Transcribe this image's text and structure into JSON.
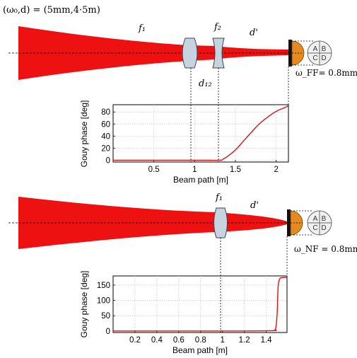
{
  "colors": {
    "beam": "#ee1111",
    "curve": "#dd1111",
    "lens": "#c7d3df",
    "lens_edge": "#3a4450",
    "detector": "#e48a1e"
  },
  "top_setup": {
    "params_label": "(ω₀,d) = (5mm,4·5m)",
    "label_f1": "f₁",
    "label_f2": "f₂",
    "label_dprime": "d'",
    "label_d12": "d₁₂",
    "spot_label": "ω_FF= 0.8mm",
    "quadrants": [
      "A",
      "B",
      "C",
      "D"
    ]
  },
  "bottom_setup": {
    "label_f1": "f₁",
    "label_dprime": "d'",
    "spot_label": "ω_NF = 0.8mm",
    "quadrants": [
      "A",
      "B",
      "C",
      "D"
    ]
  },
  "chart_data": [
    {
      "type": "line",
      "xlabel": "Beam path [m]",
      "ylabel": "Gouy phase [deg]",
      "xlim": [
        0,
        2.15
      ],
      "ylim": [
        -3,
        92
      ],
      "xticks": [
        0.5,
        1,
        1.5,
        2
      ],
      "xtick_labels": [
        "0.5",
        "1",
        "1.5",
        "2"
      ],
      "yticks": [
        0,
        20,
        40,
        60,
        80
      ],
      "ytick_labels": [
        "0",
        "20",
        "40",
        "60",
        "80"
      ],
      "grid": true,
      "series": [
        {
          "x": [
            0,
            1.0,
            1.3,
            1.35,
            1.4,
            1.5,
            1.6,
            1.7,
            1.8,
            1.9,
            2.0,
            2.1,
            2.15
          ],
          "y": [
            0,
            0,
            0,
            2,
            6,
            17,
            32,
            47,
            61,
            72,
            81,
            87,
            90
          ]
        }
      ]
    },
    {
      "type": "line",
      "xlabel": "Beam path [m]",
      "ylabel": "Gouy phase [deg]",
      "xlim": [
        0,
        1.59
      ],
      "ylim": [
        -5,
        180
      ],
      "xticks": [
        0.2,
        0.4,
        0.6,
        0.8,
        1,
        1.2,
        1.4
      ],
      "xtick_labels": [
        "0.2",
        "0.4",
        "0.6",
        "0.8",
        "1",
        "1.2",
        "1.4"
      ],
      "yticks": [
        0,
        50,
        100,
        150
      ],
      "ytick_labels": [
        "0",
        "50",
        "100",
        "150"
      ],
      "grid": true,
      "series": [
        {
          "x": [
            0,
            1.0,
            1.45,
            1.48,
            1.49,
            1.5,
            1.505,
            1.51,
            1.52,
            1.53,
            1.55,
            1.59
          ],
          "y": [
            0,
            0,
            1,
            5,
            15,
            60,
            110,
            150,
            168,
            173,
            175,
            175
          ]
        }
      ]
    }
  ]
}
